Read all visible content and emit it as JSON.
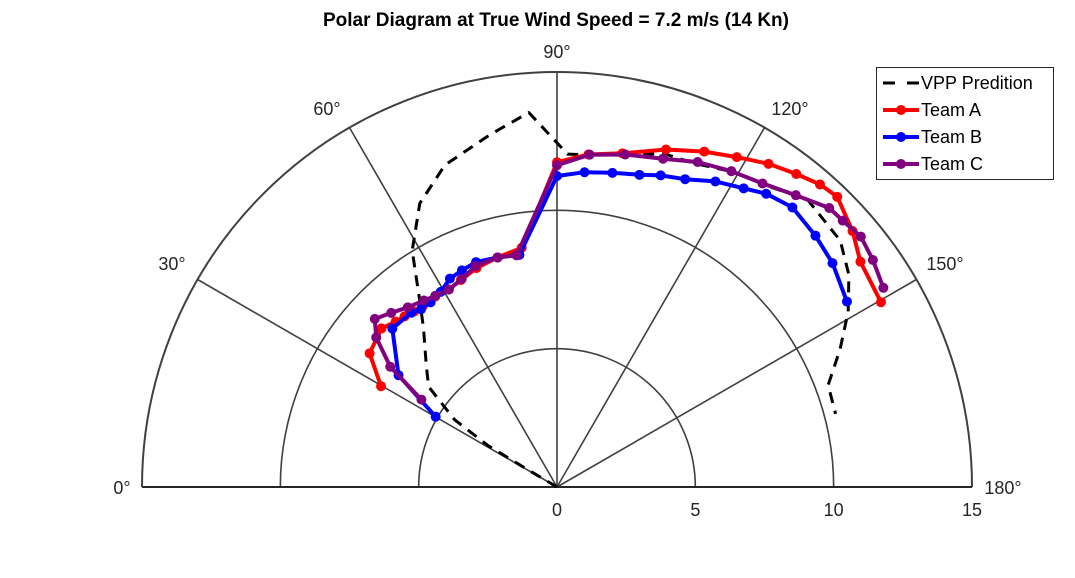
{
  "chart_data": {
    "type": "polar-line",
    "title": "Polar Diagram at True Wind Speed = 7.2 m/s (14 Kn)",
    "angle_range_deg": [
      0,
      180
    ],
    "angle_ticks": [
      "0°",
      "30°",
      "60°",
      "90°",
      "120°",
      "150°",
      "180°"
    ],
    "radial_ticks": [
      "0",
      "5",
      "10",
      "15"
    ],
    "rlim": [
      0,
      15
    ],
    "grid": true,
    "legend_position": "top-right",
    "series": [
      {
        "name": "VPP Predition",
        "color": "#000000",
        "style": "dashed",
        "markers": false,
        "points": [
          [
            30.7,
            1.55
          ],
          [
            31.0,
            2.94
          ],
          [
            33.3,
            4.43
          ],
          [
            38.0,
            5.89
          ],
          [
            42.9,
            6.45
          ],
          [
            50.1,
            7.53
          ],
          [
            53.9,
            8.44
          ],
          [
            58.5,
            10.02
          ],
          [
            64.2,
            11.39
          ],
          [
            70.8,
            12.32
          ],
          [
            79.3,
            12.97
          ],
          [
            85.7,
            13.57
          ],
          [
            91.8,
            12.04
          ],
          [
            95.8,
            12.06
          ],
          [
            101.6,
            12.29
          ],
          [
            107.9,
            12.65
          ],
          [
            113.3,
            12.72
          ],
          [
            119.0,
            13.03
          ],
          [
            125.5,
            13.31
          ],
          [
            131.1,
            13.78
          ],
          [
            139.0,
            13.57
          ],
          [
            144.0,
            13.04
          ],
          [
            148.9,
            12.29
          ],
          [
            154.1,
            11.37
          ],
          [
            159.4,
            10.47
          ],
          [
            165.3,
            10.41
          ]
        ]
      },
      {
        "name": "Team A",
        "color": "#ff0000",
        "style": "solid",
        "markers": true,
        "points": [
          [
            29.8,
            7.33
          ],
          [
            35.5,
            8.32
          ],
          [
            42.1,
            8.55
          ],
          [
            45.7,
            8.35
          ],
          [
            48.2,
            8.27
          ],
          [
            50.8,
            8.18
          ],
          [
            53.4,
            8.14
          ],
          [
            57.4,
            8.17
          ],
          [
            61.3,
            8.14
          ],
          [
            65.1,
            8.25
          ],
          [
            69.8,
            8.43
          ],
          [
            75.5,
            8.57
          ],
          [
            81.6,
            8.74
          ],
          [
            90.0,
            11.74
          ],
          [
            95.4,
            12.07
          ],
          [
            101.1,
            12.29
          ],
          [
            107.9,
            12.82
          ],
          [
            113.7,
            13.24
          ],
          [
            118.6,
            13.58
          ],
          [
            123.2,
            13.96
          ],
          [
            127.4,
            14.24
          ],
          [
            131.0,
            14.49
          ],
          [
            134.0,
            14.58
          ],
          [
            139.1,
            14.13
          ],
          [
            143.4,
            13.66
          ],
          [
            150.3,
            13.48
          ]
        ]
      },
      {
        "name": "Team B",
        "color": "#0000ff",
        "style": "solid",
        "markers": true,
        "points": [
          [
            30.1,
            5.07
          ],
          [
            35.2,
            7.01
          ],
          [
            43.9,
            8.26
          ],
          [
            50.1,
            8.21
          ],
          [
            52.6,
            8.09
          ],
          [
            55.6,
            8.09
          ],
          [
            59.2,
            8.21
          ],
          [
            62.8,
            8.47
          ],
          [
            66.3,
            8.55
          ],
          [
            70.2,
            8.64
          ],
          [
            75.5,
            8.57
          ],
          [
            80.8,
            8.5
          ],
          [
            90.0,
            11.24
          ],
          [
            95.0,
            11.42
          ],
          [
            100.0,
            11.53
          ],
          [
            104.8,
            11.67
          ],
          [
            108.4,
            11.87
          ],
          [
            112.6,
            12.05
          ],
          [
            117.4,
            12.44
          ],
          [
            122.0,
            12.73
          ],
          [
            125.5,
            13.02
          ],
          [
            130.1,
            13.21
          ],
          [
            135.8,
            13.03
          ],
          [
            140.9,
            12.83
          ],
          [
            147.4,
            12.44
          ]
        ]
      },
      {
        "name": "Team C",
        "color": "#800080",
        "style": "solid",
        "markers": true,
        "points": [
          [
            32.8,
            5.83
          ],
          [
            35.8,
            7.43
          ],
          [
            39.6,
            8.48
          ],
          [
            42.7,
            8.96
          ],
          [
            46.4,
            8.69
          ],
          [
            50.3,
            8.44
          ],
          [
            54.5,
            8.28
          ],
          [
            57.5,
            8.19
          ],
          [
            61.3,
            8.14
          ],
          [
            65.4,
            8.27
          ],
          [
            69.7,
            8.51
          ],
          [
            75.5,
            8.57
          ],
          [
            80.1,
            8.5
          ],
          [
            90.0,
            11.63
          ],
          [
            95.6,
            12.07
          ],
          [
            101.6,
            12.27
          ],
          [
            107.9,
            12.47
          ],
          [
            113.4,
            12.8
          ],
          [
            118.9,
            13.04
          ],
          [
            124.1,
            13.25
          ],
          [
            129.3,
            13.63
          ],
          [
            134.3,
            14.09
          ],
          [
            137.0,
            14.12
          ],
          [
            140.5,
            14.23
          ],
          [
            144.3,
            14.06
          ],
          [
            148.6,
            13.82
          ]
        ]
      }
    ]
  },
  "legend": {
    "items": [
      {
        "label": "VPP Predition",
        "color": "#000000"
      },
      {
        "label": "Team A",
        "color": "#ff0000"
      },
      {
        "label": "Team B",
        "color": "#0000ff"
      },
      {
        "label": "Team C",
        "color": "#800080"
      }
    ]
  }
}
